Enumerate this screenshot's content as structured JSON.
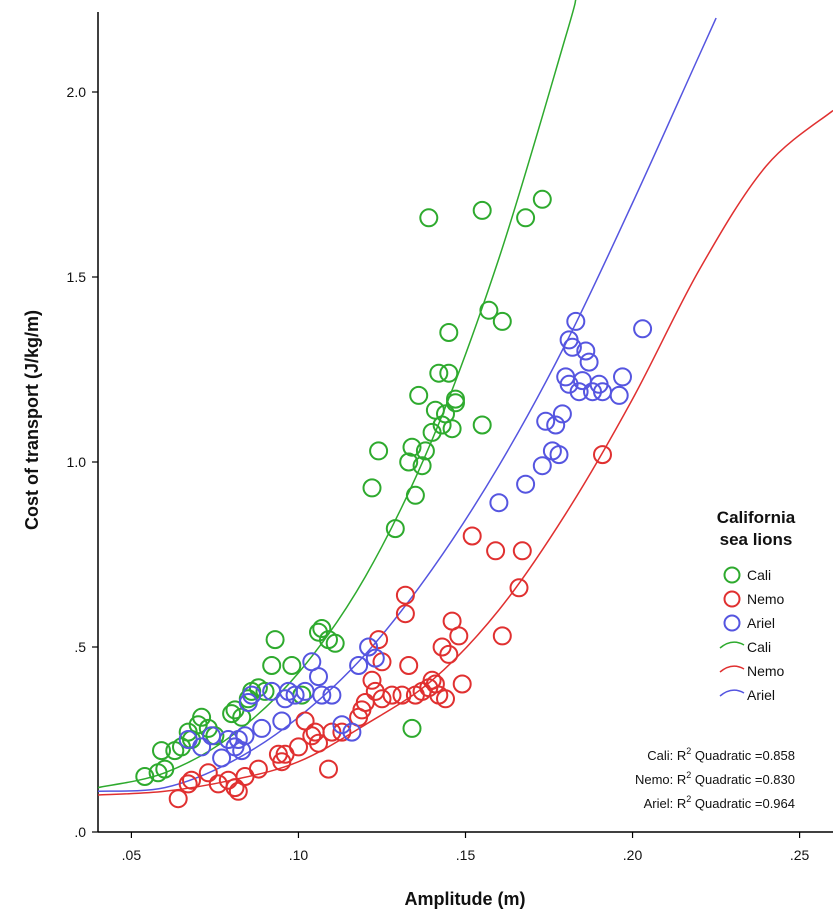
{
  "chart_data": {
    "type": "scatter",
    "xlabel": "Amplitude (m)",
    "ylabel": "Cost of transport (J/kg/m)",
    "xlim": [
      0.04,
      0.26
    ],
    "ylim": [
      0.0,
      2.2
    ],
    "xticks": [
      {
        "value": 0.05,
        "label": ".05"
      },
      {
        "value": 0.1,
        "label": ".10"
      },
      {
        "value": 0.15,
        "label": ".15"
      },
      {
        "value": 0.2,
        "label": ".20"
      },
      {
        "value": 0.25,
        "label": ".25"
      }
    ],
    "yticks": [
      {
        "value": 0.0,
        "label": ".0"
      },
      {
        "value": 0.5,
        "label": ".5"
      },
      {
        "value": 1.0,
        "label": "1.0"
      },
      {
        "value": 1.5,
        "label": "1.5"
      },
      {
        "value": 2.0,
        "label": "2.0"
      }
    ],
    "grid": false,
    "legend": {
      "title_line1": "California",
      "title_line2": "sea lions",
      "placement": "right",
      "marker_entries": [
        "Cali",
        "Nemo",
        "Ariel"
      ],
      "line_entries": [
        "Cali",
        "Nemo",
        "Ariel"
      ]
    },
    "r_squared": [
      {
        "prefix": "Cali: R",
        "sup": "2",
        "suffix": " Quadratic =0.858"
      },
      {
        "prefix": "Nemo: R",
        "sup": "2",
        "suffix": " Quadratic =0.830"
      },
      {
        "prefix": "Ariel: R",
        "sup": "2",
        "suffix": " Quadratic =0.964"
      }
    ],
    "series": [
      {
        "name": "Cali",
        "color": "#2eaa2e",
        "curve_points": [
          [
            0.04,
            0.12
          ],
          [
            0.06,
            0.16
          ],
          [
            0.08,
            0.26
          ],
          [
            0.1,
            0.43
          ],
          [
            0.12,
            0.69
          ],
          [
            0.14,
            1.06
          ],
          [
            0.16,
            1.55
          ],
          [
            0.18,
            2.15
          ],
          [
            0.183,
            2.25
          ]
        ],
        "points": [
          [
            0.054,
            0.15
          ],
          [
            0.058,
            0.16
          ],
          [
            0.06,
            0.17
          ],
          [
            0.059,
            0.22
          ],
          [
            0.063,
            0.22
          ],
          [
            0.065,
            0.23
          ],
          [
            0.068,
            0.25
          ],
          [
            0.067,
            0.27
          ],
          [
            0.07,
            0.29
          ],
          [
            0.071,
            0.31
          ],
          [
            0.073,
            0.28
          ],
          [
            0.075,
            0.26
          ],
          [
            0.08,
            0.32
          ],
          [
            0.081,
            0.33
          ],
          [
            0.083,
            0.31
          ],
          [
            0.085,
            0.36
          ],
          [
            0.086,
            0.38
          ],
          [
            0.088,
            0.39
          ],
          [
            0.09,
            0.38
          ],
          [
            0.092,
            0.45
          ],
          [
            0.093,
            0.52
          ],
          [
            0.098,
            0.45
          ],
          [
            0.101,
            0.37
          ],
          [
            0.106,
            0.54
          ],
          [
            0.107,
            0.55
          ],
          [
            0.109,
            0.52
          ],
          [
            0.111,
            0.51
          ],
          [
            0.122,
            0.93
          ],
          [
            0.124,
            1.03
          ],
          [
            0.129,
            0.82
          ],
          [
            0.133,
            1.0
          ],
          [
            0.134,
            1.04
          ],
          [
            0.135,
            0.91
          ],
          [
            0.136,
            1.18
          ],
          [
            0.137,
            0.99
          ],
          [
            0.138,
            1.03
          ],
          [
            0.139,
            1.66
          ],
          [
            0.14,
            1.08
          ],
          [
            0.141,
            1.14
          ],
          [
            0.142,
            1.24
          ],
          [
            0.143,
            1.1
          ],
          [
            0.144,
            1.13
          ],
          [
            0.145,
            1.24
          ],
          [
            0.145,
            1.35
          ],
          [
            0.146,
            1.09
          ],
          [
            0.147,
            1.16
          ],
          [
            0.147,
            1.17
          ],
          [
            0.155,
            1.68
          ],
          [
            0.155,
            1.1
          ],
          [
            0.157,
            1.41
          ],
          [
            0.161,
            1.38
          ],
          [
            0.168,
            1.66
          ],
          [
            0.173,
            1.71
          ],
          [
            0.134,
            0.28
          ]
        ]
      },
      {
        "name": "Nemo",
        "color": "#e03030",
        "curve_points": [
          [
            0.04,
            0.1
          ],
          [
            0.06,
            0.11
          ],
          [
            0.08,
            0.14
          ],
          [
            0.1,
            0.19
          ],
          [
            0.12,
            0.29
          ],
          [
            0.14,
            0.41
          ],
          [
            0.16,
            0.6
          ],
          [
            0.18,
            0.86
          ],
          [
            0.2,
            1.17
          ],
          [
            0.22,
            1.52
          ],
          [
            0.24,
            1.8
          ],
          [
            0.26,
            1.95
          ]
        ],
        "points": [
          [
            0.064,
            0.09
          ],
          [
            0.067,
            0.13
          ],
          [
            0.068,
            0.14
          ],
          [
            0.073,
            0.16
          ],
          [
            0.076,
            0.13
          ],
          [
            0.079,
            0.14
          ],
          [
            0.081,
            0.12
          ],
          [
            0.082,
            0.11
          ],
          [
            0.084,
            0.15
          ],
          [
            0.088,
            0.17
          ],
          [
            0.094,
            0.21
          ],
          [
            0.095,
            0.19
          ],
          [
            0.096,
            0.21
          ],
          [
            0.1,
            0.23
          ],
          [
            0.102,
            0.3
          ],
          [
            0.104,
            0.26
          ],
          [
            0.105,
            0.27
          ],
          [
            0.106,
            0.24
          ],
          [
            0.109,
            0.17
          ],
          [
            0.11,
            0.27
          ],
          [
            0.113,
            0.27
          ],
          [
            0.118,
            0.31
          ],
          [
            0.119,
            0.33
          ],
          [
            0.12,
            0.35
          ],
          [
            0.122,
            0.41
          ],
          [
            0.123,
            0.38
          ],
          [
            0.124,
            0.52
          ],
          [
            0.125,
            0.46
          ],
          [
            0.125,
            0.36
          ],
          [
            0.128,
            0.37
          ],
          [
            0.131,
            0.37
          ],
          [
            0.132,
            0.64
          ],
          [
            0.132,
            0.59
          ],
          [
            0.133,
            0.45
          ],
          [
            0.135,
            0.37
          ],
          [
            0.137,
            0.38
          ],
          [
            0.139,
            0.39
          ],
          [
            0.14,
            0.41
          ],
          [
            0.141,
            0.4
          ],
          [
            0.142,
            0.37
          ],
          [
            0.143,
            0.5
          ],
          [
            0.144,
            0.36
          ],
          [
            0.145,
            0.48
          ],
          [
            0.146,
            0.57
          ],
          [
            0.148,
            0.53
          ],
          [
            0.149,
            0.4
          ],
          [
            0.152,
            0.8
          ],
          [
            0.159,
            0.76
          ],
          [
            0.161,
            0.53
          ],
          [
            0.166,
            0.66
          ],
          [
            0.167,
            0.76
          ],
          [
            0.191,
            1.02
          ]
        ]
      },
      {
        "name": "Ariel",
        "color": "#5555e0",
        "curve_points": [
          [
            0.04,
            0.11
          ],
          [
            0.06,
            0.12
          ],
          [
            0.08,
            0.19
          ],
          [
            0.1,
            0.31
          ],
          [
            0.12,
            0.48
          ],
          [
            0.14,
            0.71
          ],
          [
            0.16,
            0.99
          ],
          [
            0.18,
            1.32
          ],
          [
            0.2,
            1.7
          ],
          [
            0.22,
            2.1
          ],
          [
            0.225,
            2.2
          ]
        ],
        "points": [
          [
            0.067,
            0.25
          ],
          [
            0.071,
            0.23
          ],
          [
            0.074,
            0.26
          ],
          [
            0.077,
            0.2
          ],
          [
            0.079,
            0.25
          ],
          [
            0.081,
            0.23
          ],
          [
            0.082,
            0.25
          ],
          [
            0.083,
            0.22
          ],
          [
            0.084,
            0.26
          ],
          [
            0.085,
            0.35
          ],
          [
            0.086,
            0.37
          ],
          [
            0.089,
            0.28
          ],
          [
            0.092,
            0.38
          ],
          [
            0.095,
            0.3
          ],
          [
            0.096,
            0.36
          ],
          [
            0.097,
            0.38
          ],
          [
            0.099,
            0.37
          ],
          [
            0.102,
            0.38
          ],
          [
            0.104,
            0.46
          ],
          [
            0.106,
            0.42
          ],
          [
            0.107,
            0.37
          ],
          [
            0.11,
            0.37
          ],
          [
            0.113,
            0.29
          ],
          [
            0.116,
            0.27
          ],
          [
            0.118,
            0.45
          ],
          [
            0.121,
            0.5
          ],
          [
            0.123,
            0.47
          ],
          [
            0.16,
            0.89
          ],
          [
            0.168,
            0.94
          ],
          [
            0.173,
            0.99
          ],
          [
            0.174,
            1.11
          ],
          [
            0.176,
            1.03
          ],
          [
            0.177,
            1.1
          ],
          [
            0.178,
            1.02
          ],
          [
            0.179,
            1.13
          ],
          [
            0.18,
            1.23
          ],
          [
            0.181,
            1.21
          ],
          [
            0.181,
            1.33
          ],
          [
            0.182,
            1.31
          ],
          [
            0.183,
            1.38
          ],
          [
            0.184,
            1.19
          ],
          [
            0.185,
            1.22
          ],
          [
            0.186,
            1.3
          ],
          [
            0.187,
            1.27
          ],
          [
            0.188,
            1.19
          ],
          [
            0.19,
            1.21
          ],
          [
            0.191,
            1.19
          ],
          [
            0.196,
            1.18
          ],
          [
            0.197,
            1.23
          ],
          [
            0.203,
            1.36
          ]
        ]
      }
    ]
  }
}
